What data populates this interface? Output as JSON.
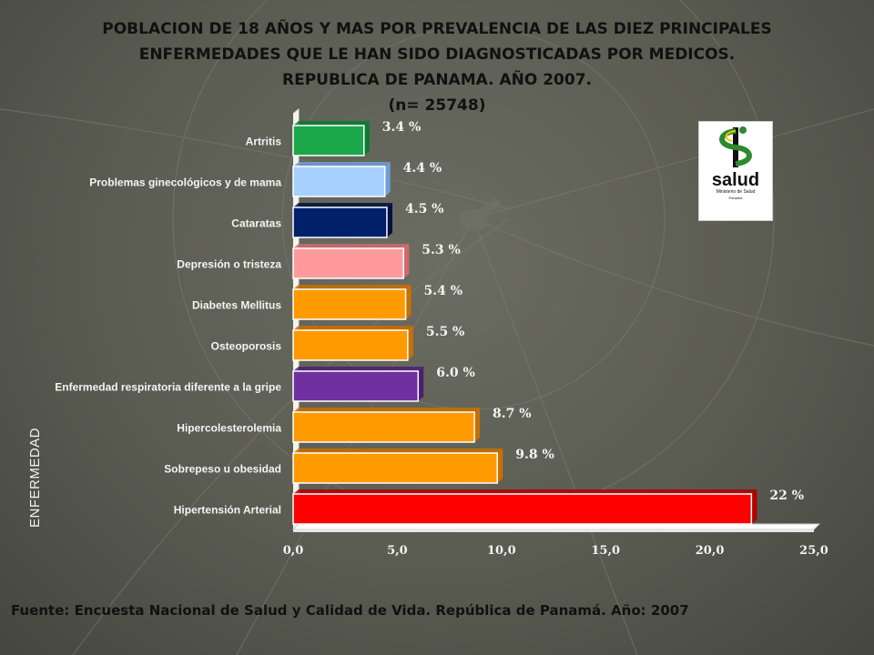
{
  "title_lines": [
    "POBLACION DE 18 AÑOS Y MAS  POR PREVALENCIA DE LAS DIEZ PRINCIPALES",
    "ENFERMEDADES QUE LE HAN SIDO DIAGNOSTICADAS POR MEDICOS.",
    "REPUBLICA DE PANAMA.  AÑO 2007.",
    "(n= 25748)"
  ],
  "footer": "Fuente: Encuesta Nacional de Salud y Calidad de Vida. República de Panamá. Año: 2007",
  "logo": {
    "text": "salud",
    "subtext": "Ministerio de Salud",
    "subtext2": "Panama",
    "icon": "caduceus-snake-icon"
  },
  "chart_data": {
    "type": "bar",
    "orientation": "horizontal",
    "ylabel": "ENFERMEDAD",
    "xlabel": "",
    "xlim": [
      0,
      25
    ],
    "x_ticks": [
      "0,0",
      "5,0",
      "10,0",
      "15,0",
      "20,0",
      "25,0"
    ],
    "grid": false,
    "categories": [
      "Artritis",
      "Problemas ginecológicos y de mama",
      "Cataratas",
      "Depresión o tristeza",
      "Diabetes Mellitus",
      "Osteoporosis",
      "Enfermedad respiratoria diferente a la gripe",
      "Hipercolesterolemia",
      "Sobrepeso u obesidad",
      "Hipertensión Arterial"
    ],
    "values": [
      3.4,
      4.4,
      4.5,
      5.3,
      5.4,
      5.5,
      6.0,
      8.7,
      9.8,
      22
    ],
    "value_labels": [
      "3.4 %",
      "4.4 %",
      "4.5 %",
      "5.3 %",
      "5.4 %",
      "5.5 %",
      "6.0 %",
      "8.7 %",
      "9.8 %",
      "22 %"
    ],
    "colors": [
      "#1aa84a",
      "#a8d0ff",
      "#00206a",
      "#ff9a9c",
      "#ff9a00",
      "#ff9a00",
      "#7030a0",
      "#ff9a00",
      "#ff9a00",
      "#ff0000"
    ],
    "side_colors": [
      "#0c7a32",
      "#6f9fd8",
      "#001040",
      "#d06a6c",
      "#c87000",
      "#c87000",
      "#4c1f72",
      "#c87000",
      "#c87000",
      "#b00000"
    ]
  }
}
